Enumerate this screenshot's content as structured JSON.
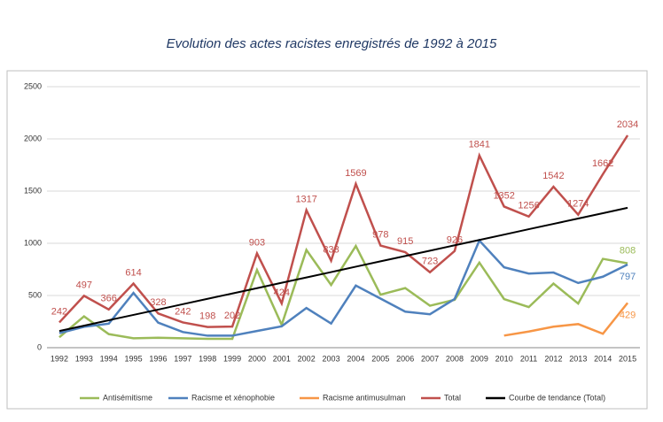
{
  "chart_data": {
    "type": "line",
    "title": "Evolution des actes racistes enregistrés de 1992 à 2015",
    "categories": [
      "1992",
      "1993",
      "1994",
      "1995",
      "1996",
      "1997",
      "1998",
      "1999",
      "2000",
      "2001",
      "2002",
      "2003",
      "2004",
      "2005",
      "2006",
      "2007",
      "2008",
      "2009",
      "2010",
      "2011",
      "2012",
      "2013",
      "2014",
      "2015"
    ],
    "series": [
      {
        "name": "Antisémitisme",
        "color": "#9bbb59",
        "data_labels": "last",
        "values": [
          100,
          300,
          130,
          90,
          95,
          90,
          85,
          85,
          744,
          219,
          936,
          601,
          974,
          508,
          571,
          402,
          459,
          815,
          466,
          389,
          614,
          423,
          851,
          808
        ]
      },
      {
        "name": "Racisme et xénophobie",
        "color": "#4f81bd",
        "data_labels": "last",
        "values": [
          140,
          200,
          230,
          525,
          240,
          150,
          115,
          115,
          160,
          205,
          380,
          232,
          595,
          470,
          345,
          320,
          467,
          1026,
          770,
          710,
          720,
          620,
          680,
          797
        ]
      },
      {
        "name": "Racisme antimusulman",
        "color": "#f79646",
        "data_labels": "last",
        "values": [
          null,
          null,
          null,
          null,
          null,
          null,
          null,
          null,
          null,
          null,
          null,
          null,
          null,
          null,
          null,
          null,
          null,
          null,
          116,
          155,
          201,
          226,
          133,
          429
        ]
      },
      {
        "name": "Total",
        "color": "#c0504d",
        "data_labels": "all",
        "values": [
          242,
          497,
          366,
          614,
          328,
          242,
          198,
          202,
          903,
          424,
          1317,
          833,
          1569,
          978,
          915,
          723,
          926,
          1841,
          1352,
          1256,
          1542,
          1274,
          1662,
          2034
        ]
      },
      {
        "name": "Courbe de tendance (Total)",
        "color": "#000000",
        "data_labels": "none",
        "values": [
          160,
          211,
          263,
          314,
          365,
          417,
          468,
          519,
          570,
          622,
          673,
          724,
          776,
          827,
          878,
          929,
          981,
          1032,
          1083,
          1135,
          1186,
          1237,
          1288,
          1340
        ]
      }
    ],
    "ylim": [
      0,
      2500
    ],
    "yticks": [
      0,
      500,
      1000,
      1500,
      2000,
      2500
    ],
    "grid": true,
    "legend": "bottom"
  }
}
